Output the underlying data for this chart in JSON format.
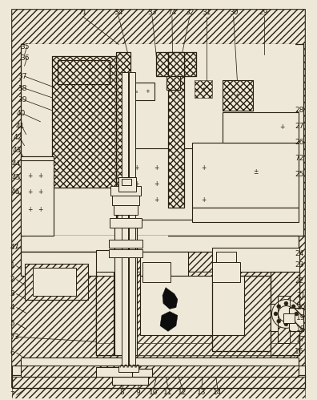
{
  "bg": "#ede8d8",
  "lc": "#2a2010",
  "figsize": [
    3.96,
    4.99
  ],
  "dpi": 100
}
